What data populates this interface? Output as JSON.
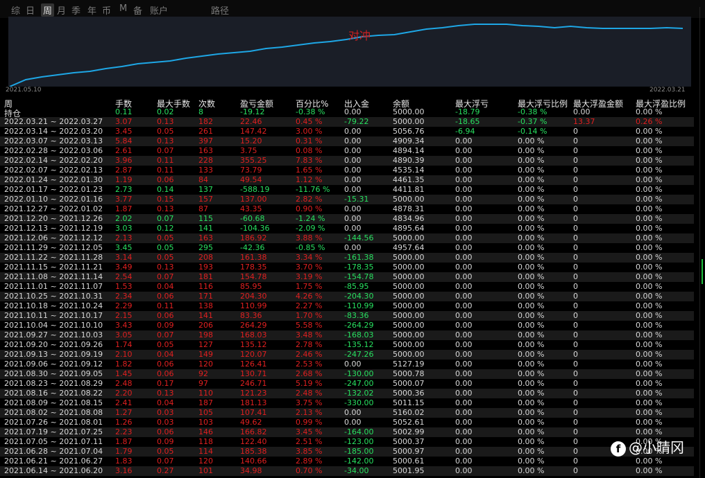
{
  "tabs": [
    "综",
    "日",
    "周",
    "月",
    "季",
    "年",
    "币",
    "M",
    "备",
    "账户",
    "路径"
  ],
  "active_tab": "周",
  "chart": {
    "label": "对冲",
    "start_date": "2021.05.10",
    "end_date": "2022.03.21",
    "line_color": "#1ea7e6",
    "points": [
      0,
      10,
      14,
      17,
      20,
      22,
      26,
      29,
      33,
      35,
      37,
      41,
      44,
      47,
      49,
      51,
      55,
      57,
      60,
      63,
      65,
      68,
      72,
      74,
      75,
      79,
      83,
      85,
      88,
      90,
      90,
      90,
      88,
      87,
      85,
      87,
      85,
      84,
      84,
      84,
      84,
      85,
      84
    ]
  },
  "columns": [
    "周",
    "手数",
    "最大手数",
    "次数",
    "盈亏金额",
    "百分比%",
    "出入金",
    "余额",
    "最大浮亏",
    "最大浮亏比例",
    "最大浮盈金额",
    "最大浮盈比例"
  ],
  "rows": [
    {
      "c": [
        "持仓",
        "0.11",
        "0.02",
        "8",
        "-19.12",
        "-0.38 %",
        "0.00",
        "5000.00",
        "-18.79",
        "-0.38 %",
        "0.00",
        "0.00 %"
      ],
      "k": [
        "w",
        "g",
        "g",
        "g",
        "g",
        "g",
        "w",
        "w",
        "g",
        "g",
        "w",
        "w"
      ]
    },
    {
      "c": [
        "2022.03.21 ~ 2022.03.27",
        "3.07",
        "0.13",
        "182",
        "22.46",
        "0.45 %",
        "-79.22",
        "5000.00",
        "-18.65",
        "-0.37 %",
        "13.37",
        "0.26 %"
      ],
      "k": [
        "w",
        "r",
        "r",
        "r",
        "r",
        "r",
        "g",
        "w",
        "g",
        "g",
        "r",
        "r"
      ]
    },
    {
      "c": [
        "2022.03.14 ~ 2022.03.20",
        "3.45",
        "0.05",
        "261",
        "147.42",
        "3.00 %",
        "0.00",
        "5056.76",
        "-6.94",
        "-0.14 %",
        "0",
        "0.00 %"
      ],
      "k": [
        "w",
        "r",
        "r",
        "r",
        "r",
        "r",
        "w",
        "w",
        "g",
        "g",
        "w",
        "w"
      ]
    },
    {
      "c": [
        "2022.03.07 ~ 2022.03.13",
        "5.84",
        "0.13",
        "397",
        "15.20",
        "0.31 %",
        "0.00",
        "4909.34",
        "0.00",
        "0.00 %",
        "0",
        "0.00 %"
      ],
      "k": [
        "w",
        "r",
        "r",
        "r",
        "r",
        "r",
        "w",
        "w",
        "w",
        "w",
        "w",
        "w"
      ]
    },
    {
      "c": [
        "2022.02.28 ~ 2022.03.06",
        "2.61",
        "0.07",
        "163",
        "3.75",
        "0.08 %",
        "0.00",
        "4894.14",
        "0.00",
        "0.00 %",
        "0",
        "0.00 %"
      ],
      "k": [
        "w",
        "r",
        "r",
        "r",
        "r",
        "r",
        "w",
        "w",
        "w",
        "w",
        "w",
        "w"
      ]
    },
    {
      "c": [
        "2022.02.14 ~ 2022.02.20",
        "3.96",
        "0.11",
        "228",
        "355.25",
        "7.83 %",
        "0.00",
        "4890.39",
        "0.00",
        "0.00 %",
        "0",
        "0.00 %"
      ],
      "k": [
        "w",
        "r",
        "r",
        "r",
        "r",
        "r",
        "w",
        "w",
        "w",
        "w",
        "w",
        "w"
      ]
    },
    {
      "c": [
        "2022.02.07 ~ 2022.02.13",
        "2.87",
        "0.11",
        "133",
        "73.79",
        "1.65 %",
        "0.00",
        "4535.14",
        "0.00",
        "0.00 %",
        "0",
        "0.00 %"
      ],
      "k": [
        "w",
        "r",
        "r",
        "r",
        "r",
        "r",
        "w",
        "w",
        "w",
        "w",
        "w",
        "w"
      ]
    },
    {
      "c": [
        "2022.01.24 ~ 2022.01.30",
        "1.19",
        "0.06",
        "84",
        "49.54",
        "1.12 %",
        "0.00",
        "4461.35",
        "0.00",
        "0.00 %",
        "0",
        "0.00 %"
      ],
      "k": [
        "w",
        "r",
        "r",
        "r",
        "r",
        "r",
        "w",
        "w",
        "w",
        "w",
        "w",
        "w"
      ]
    },
    {
      "c": [
        "2022.01.17 ~ 2022.01.23",
        "2.73",
        "0.14",
        "137",
        "-588.19",
        "-11.76 %",
        "0.00",
        "4411.81",
        "0.00",
        "0.00 %",
        "0",
        "0.00 %"
      ],
      "k": [
        "w",
        "g",
        "g",
        "g",
        "g",
        "g",
        "w",
        "w",
        "w",
        "w",
        "w",
        "w"
      ]
    },
    {
      "c": [
        "2022.01.10 ~ 2022.01.16",
        "3.77",
        "0.15",
        "157",
        "137.00",
        "2.82 %",
        "-15.31",
        "5000.00",
        "0.00",
        "0.00 %",
        "0",
        "0.00 %"
      ],
      "k": [
        "w",
        "r",
        "r",
        "r",
        "r",
        "r",
        "g",
        "w",
        "w",
        "w",
        "w",
        "w"
      ]
    },
    {
      "c": [
        "2021.12.27 ~ 2022.01.02",
        "1.87",
        "0.13",
        "87",
        "43.35",
        "0.90 %",
        "0.00",
        "4878.31",
        "0.00",
        "0.00 %",
        "0",
        "0.00 %"
      ],
      "k": [
        "w",
        "r",
        "r",
        "r",
        "r",
        "r",
        "w",
        "w",
        "w",
        "w",
        "w",
        "w"
      ]
    },
    {
      "c": [
        "2021.12.20 ~ 2021.12.26",
        "2.02",
        "0.07",
        "115",
        "-60.68",
        "-1.24 %",
        "0.00",
        "4834.96",
        "0.00",
        "0.00 %",
        "0",
        "0.00 %"
      ],
      "k": [
        "w",
        "g",
        "g",
        "g",
        "g",
        "g",
        "w",
        "w",
        "w",
        "w",
        "w",
        "w"
      ]
    },
    {
      "c": [
        "2021.12.13 ~ 2021.12.19",
        "3.03",
        "0.12",
        "141",
        "-104.36",
        "-2.09 %",
        "0.00",
        "4895.64",
        "0.00",
        "0.00 %",
        "0",
        "0.00 %"
      ],
      "k": [
        "w",
        "g",
        "g",
        "g",
        "g",
        "g",
        "w",
        "w",
        "w",
        "w",
        "w",
        "w"
      ]
    },
    {
      "c": [
        "2021.12.06 ~ 2021.12.12",
        "2.13",
        "0.05",
        "163",
        "186.92",
        "3.88 %",
        "-144.56",
        "5000.00",
        "0.00",
        "0.00 %",
        "0",
        "0.00 %"
      ],
      "k": [
        "w",
        "r",
        "r",
        "r",
        "r",
        "r",
        "g",
        "w",
        "w",
        "w",
        "w",
        "w"
      ]
    },
    {
      "c": [
        "2021.11.29 ~ 2021.12.05",
        "3.45",
        "0.05",
        "295",
        "-42.36",
        "-0.85 %",
        "0.00",
        "4957.64",
        "0.00",
        "0.00 %",
        "0",
        "0.00 %"
      ],
      "k": [
        "w",
        "g",
        "g",
        "g",
        "g",
        "g",
        "w",
        "w",
        "w",
        "w",
        "w",
        "w"
      ]
    },
    {
      "c": [
        "2021.11.22 ~ 2021.11.28",
        "3.14",
        "0.05",
        "208",
        "161.38",
        "3.34 %",
        "-161.38",
        "5000.00",
        "0.00",
        "0.00 %",
        "0",
        "0.00 %"
      ],
      "k": [
        "w",
        "r",
        "r",
        "r",
        "r",
        "r",
        "g",
        "w",
        "w",
        "w",
        "w",
        "w"
      ]
    },
    {
      "c": [
        "2021.11.15 ~ 2021.11.21",
        "3.49",
        "0.13",
        "193",
        "178.35",
        "3.70 %",
        "-178.35",
        "5000.00",
        "0.00",
        "0.00 %",
        "0",
        "0.00 %"
      ],
      "k": [
        "w",
        "r",
        "r",
        "r",
        "r",
        "r",
        "g",
        "w",
        "w",
        "w",
        "w",
        "w"
      ]
    },
    {
      "c": [
        "2021.11.08 ~ 2021.11.14",
        "2.54",
        "0.07",
        "181",
        "154.78",
        "3.19 %",
        "-154.78",
        "5000.00",
        "0.00",
        "0.00 %",
        "0",
        "0.00 %"
      ],
      "k": [
        "w",
        "r",
        "r",
        "r",
        "r",
        "r",
        "g",
        "w",
        "w",
        "w",
        "w",
        "w"
      ]
    },
    {
      "c": [
        "2021.11.01 ~ 2021.11.07",
        "1.53",
        "0.04",
        "116",
        "85.95",
        "1.75 %",
        "-85.95",
        "5000.00",
        "0.00",
        "0.00 %",
        "0",
        "0.00 %"
      ],
      "k": [
        "w",
        "r",
        "r",
        "r",
        "r",
        "r",
        "g",
        "w",
        "w",
        "w",
        "w",
        "w"
      ]
    },
    {
      "c": [
        "2021.10.25 ~ 2021.10.31",
        "2.34",
        "0.06",
        "171",
        "204.30",
        "4.26 %",
        "-204.30",
        "5000.00",
        "0.00",
        "0.00 %",
        "0",
        "0.00 %"
      ],
      "k": [
        "w",
        "r",
        "r",
        "r",
        "r",
        "r",
        "g",
        "w",
        "w",
        "w",
        "w",
        "w"
      ]
    },
    {
      "c": [
        "2021.10.18 ~ 2021.10.24",
        "2.29",
        "0.11",
        "138",
        "110.99",
        "2.27 %",
        "-110.99",
        "5000.00",
        "0.00",
        "0.00 %",
        "0",
        "0.00 %"
      ],
      "k": [
        "w",
        "r",
        "r",
        "r",
        "r",
        "r",
        "g",
        "w",
        "w",
        "w",
        "w",
        "w"
      ]
    },
    {
      "c": [
        "2021.10.11 ~ 2021.10.17",
        "2.15",
        "0.06",
        "141",
        "83.36",
        "1.70 %",
        "-83.36",
        "5000.00",
        "0.00",
        "0.00 %",
        "0",
        "0.00 %"
      ],
      "k": [
        "w",
        "r",
        "r",
        "r",
        "r",
        "r",
        "g",
        "w",
        "w",
        "w",
        "w",
        "w"
      ]
    },
    {
      "c": [
        "2021.10.04 ~ 2021.10.10",
        "3.43",
        "0.09",
        "206",
        "264.29",
        "5.58 %",
        "-264.29",
        "5000.00",
        "0.00",
        "0.00 %",
        "0",
        "0.00 %"
      ],
      "k": [
        "w",
        "r",
        "r",
        "r",
        "r",
        "r",
        "g",
        "w",
        "w",
        "w",
        "w",
        "w"
      ]
    },
    {
      "c": [
        "2021.09.27 ~ 2021.10.03",
        "3.05",
        "0.07",
        "198",
        "168.03",
        "3.48 %",
        "-168.03",
        "5000.00",
        "0.00",
        "0.00 %",
        "0",
        "0.00 %"
      ],
      "k": [
        "w",
        "r",
        "r",
        "r",
        "r",
        "r",
        "g",
        "w",
        "w",
        "w",
        "w",
        "w"
      ]
    },
    {
      "c": [
        "2021.09.20 ~ 2021.09.26",
        "1.74",
        "0.05",
        "127",
        "135.12",
        "2.78 %",
        "-135.12",
        "5000.00",
        "0.00",
        "0.00 %",
        "0",
        "0.00 %"
      ],
      "k": [
        "w",
        "r",
        "r",
        "r",
        "r",
        "r",
        "g",
        "w",
        "w",
        "w",
        "w",
        "w"
      ]
    },
    {
      "c": [
        "2021.09.13 ~ 2021.09.19",
        "2.10",
        "0.04",
        "149",
        "120.07",
        "2.46 %",
        "-247.26",
        "5000.00",
        "0.00",
        "0.00 %",
        "0",
        "0.00 %"
      ],
      "k": [
        "w",
        "r",
        "r",
        "r",
        "r",
        "r",
        "g",
        "w",
        "w",
        "w",
        "w",
        "w"
      ]
    },
    {
      "c": [
        "2021.09.06 ~ 2021.09.12",
        "1.82",
        "0.06",
        "120",
        "126.41",
        "2.53 %",
        "0.00",
        "5127.19",
        "0.00",
        "0.00 %",
        "0",
        "0.00 %"
      ],
      "k": [
        "w",
        "r",
        "r",
        "r",
        "r",
        "r",
        "w",
        "w",
        "w",
        "w",
        "w",
        "w"
      ]
    },
    {
      "c": [
        "2021.08.30 ~ 2021.09.05",
        "1.45",
        "0.06",
        "92",
        "130.71",
        "2.68 %",
        "-130.00",
        "5000.78",
        "0.00",
        "0.00 %",
        "0",
        "0.00 %"
      ],
      "k": [
        "w",
        "r",
        "r",
        "r",
        "r",
        "r",
        "g",
        "w",
        "w",
        "w",
        "w",
        "w"
      ]
    },
    {
      "c": [
        "2021.08.23 ~ 2021.08.29",
        "2.48",
        "0.17",
        "97",
        "246.71",
        "5.19 %",
        "-247.00",
        "5000.07",
        "0.00",
        "0.00 %",
        "0",
        "0.00 %"
      ],
      "k": [
        "w",
        "r",
        "r",
        "r",
        "r",
        "r",
        "g",
        "w",
        "w",
        "w",
        "w",
        "w"
      ]
    },
    {
      "c": [
        "2021.08.16 ~ 2021.08.22",
        "2.20",
        "0.13",
        "110",
        "121.23",
        "2.48 %",
        "-132.02",
        "5000.36",
        "0.00",
        "0.00 %",
        "0",
        "0.00 %"
      ],
      "k": [
        "w",
        "r",
        "r",
        "r",
        "r",
        "r",
        "g",
        "w",
        "w",
        "w",
        "w",
        "w"
      ]
    },
    {
      "c": [
        "2021.08.09 ~ 2021.08.15",
        "2.41",
        "0.04",
        "187",
        "181.13",
        "3.75 %",
        "-330.00",
        "5011.15",
        "0.00",
        "0.00 %",
        "0",
        "0.00 %"
      ],
      "k": [
        "w",
        "r",
        "r",
        "r",
        "r",
        "r",
        "g",
        "w",
        "w",
        "w",
        "w",
        "w"
      ]
    },
    {
      "c": [
        "2021.08.02 ~ 2021.08.08",
        "1.27",
        "0.03",
        "105",
        "107.41",
        "2.13 %",
        "0.00",
        "5160.02",
        "0.00",
        "0.00 %",
        "0",
        "0.00 %"
      ],
      "k": [
        "w",
        "r",
        "r",
        "r",
        "r",
        "r",
        "w",
        "w",
        "w",
        "w",
        "w",
        "w"
      ]
    },
    {
      "c": [
        "2021.07.26 ~ 2021.08.01",
        "1.26",
        "0.03",
        "103",
        "49.62",
        "0.99 %",
        "0.00",
        "5052.61",
        "0.00",
        "0.00 %",
        "0",
        "0.00 %"
      ],
      "k": [
        "w",
        "r",
        "r",
        "r",
        "r",
        "r",
        "w",
        "w",
        "w",
        "w",
        "w",
        "w"
      ]
    },
    {
      "c": [
        "2021.07.19 ~ 2021.07.25",
        "2.23",
        "0.06",
        "146",
        "166.82",
        "3.45 %",
        "-164.00",
        "5002.99",
        "0.00",
        "0.00 %",
        "0",
        "0.00 %"
      ],
      "k": [
        "w",
        "r",
        "r",
        "r",
        "r",
        "r",
        "g",
        "w",
        "w",
        "w",
        "w",
        "w"
      ]
    },
    {
      "c": [
        "2021.07.05 ~ 2021.07.11",
        "1.87",
        "0.09",
        "118",
        "122.40",
        "2.51 %",
        "-123.00",
        "5000.37",
        "0.00",
        "0.00 %",
        "0",
        "0.00 %"
      ],
      "k": [
        "w",
        "r",
        "r",
        "r",
        "r",
        "r",
        "g",
        "w",
        "w",
        "w",
        "w",
        "w"
      ]
    },
    {
      "c": [
        "2021.06.28 ~ 2021.07.04",
        "1.79",
        "0.05",
        "114",
        "185.38",
        "3.85 %",
        "-185.00",
        "5000.97",
        "0.00",
        "0.00 %",
        "0",
        "0.00 %"
      ],
      "k": [
        "w",
        "r",
        "r",
        "r",
        "r",
        "r",
        "g",
        "w",
        "w",
        "w",
        "w",
        "w"
      ]
    },
    {
      "c": [
        "2021.06.21 ~ 2021.06.27",
        "1.83",
        "0.07",
        "120",
        "140.66",
        "2.89 %",
        "-142.00",
        "5000.61",
        "0.00",
        "0.00 %",
        "0",
        "0.00 %"
      ],
      "k": [
        "w",
        "r",
        "r",
        "r",
        "r",
        "r",
        "g",
        "w",
        "w",
        "w",
        "w",
        "w"
      ]
    },
    {
      "c": [
        "2021.06.14 ~ 2021.06.20",
        "3.16",
        "0.27",
        "101",
        "34.98",
        "0.70 %",
        "-34.00",
        "5001.95",
        "0.00",
        "0.00 %",
        "0",
        "0.00 %"
      ],
      "k": [
        "w",
        "r",
        "r",
        "r",
        "r",
        "r",
        "g",
        "w",
        "w",
        "w",
        "w",
        "w"
      ]
    }
  ],
  "colors": {
    "w": "#d8d8d8",
    "g": "#28e060",
    "r": "#e02020"
  },
  "watermark": "@小晴冈"
}
